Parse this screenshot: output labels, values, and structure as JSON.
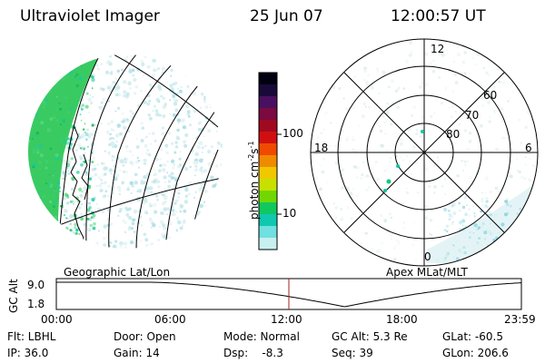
{
  "header": {
    "instrument": "Ultraviolet Imager",
    "date": "25 Jun 07",
    "time": "12:00:57 UT"
  },
  "colorbar": {
    "label": "photon cm",
    "label_exp1": "-2",
    "label_mid": "s",
    "label_exp2": "-1",
    "ticks": [
      "100",
      "10"
    ],
    "colors": [
      "#000010",
      "#1a0a3a",
      "#4a1060",
      "#7a0a40",
      "#a00a20",
      "#d01010",
      "#f04a00",
      "#f08a00",
      "#f0c800",
      "#c8e000",
      "#70d800",
      "#10c860",
      "#10c8b0",
      "#70e0e0",
      "#c8f0f0"
    ]
  },
  "polar": {
    "mlt_labels": {
      "top": "12",
      "left": "18",
      "right": "6",
      "bottom": "0"
    },
    "lat_labels": [
      "60",
      "70",
      "80"
    ]
  },
  "panel_labels": {
    "left": "Geographic Lat/Lon",
    "right": "Apex MLat/MLT"
  },
  "timeline": {
    "ylabel": "GC Alt",
    "yticks": [
      "9.0",
      "1.8"
    ],
    "xticks": [
      "00:00",
      "06:00",
      "12:00",
      "18:00",
      "23:59"
    ],
    "marker_fraction": 0.5
  },
  "info": {
    "row1": {
      "flt": "Flt: LBHL",
      "door": "Door: Open",
      "mode": "Mode: Normal",
      "gcalt": "GC Alt: 5.3 Re",
      "glat": "GLat: -60.5"
    },
    "row2": {
      "ip": "IP: 36.0",
      "gain": "Gain: 14",
      "dsp": "Dsp:    -8.3",
      "seq": "Seq: 39",
      "glon": "GLon: 206.6"
    }
  }
}
